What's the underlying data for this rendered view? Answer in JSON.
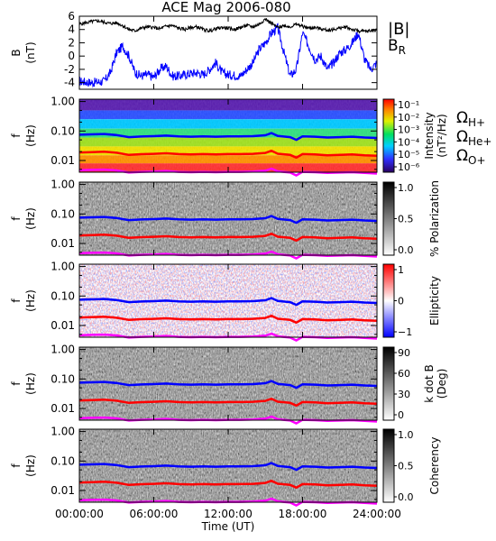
{
  "chart_data": {
    "title": "ACE Mag 2006-080",
    "x_axis": {
      "label": "Time (UT)",
      "range_hours": [
        0,
        24
      ],
      "tick_hours": [
        0,
        6,
        12,
        18,
        24
      ],
      "tick_labels": [
        "00:00:00",
        "06:00:00",
        "12:00:00",
        "18:00:00",
        "24:00:00"
      ]
    },
    "colors": {
      "B": "#000000",
      "BR": "#0000ff",
      "OmegaH": "#0000ff",
      "OmegaHe": "#ff0000",
      "OmegaO": "#ff00ff"
    },
    "line_panel": {
      "type": "line",
      "ylabel_top": "B",
      "ylabel_bottom": "(nT)",
      "ylim": [
        -5,
        6
      ],
      "y_ticks": [
        -4,
        -2,
        0,
        2,
        4,
        6
      ],
      "y_tick_labels": [
        "-4",
        "-2",
        "0",
        "2",
        "4",
        "6"
      ],
      "legend": {
        "B_main": "|B|",
        "BR_main": "B",
        "BR_sub": "R"
      },
      "series": [
        {
          "key": "B",
          "x": [
            0,
            0.5,
            1,
            1.5,
            2,
            2.5,
            3,
            3.5,
            4,
            4.5,
            5,
            5.5,
            6,
            6.5,
            7,
            7.5,
            8,
            8.5,
            9,
            9.5,
            10,
            10.5,
            11,
            11.5,
            12,
            12.5,
            13,
            13.5,
            14,
            14.5,
            15,
            15.5,
            16,
            16.5,
            17,
            17.5,
            18,
            18.5,
            19,
            19.5,
            20,
            20.5,
            21,
            21.5,
            22,
            22.5,
            23,
            23.5,
            24
          ],
          "y": [
            4.8,
            5.0,
            5.2,
            5.3,
            5.1,
            4.9,
            5.0,
            4.6,
            4.0,
            3.8,
            4.2,
            4.4,
            4.3,
            4.1,
            4.5,
            4.6,
            4.2,
            4.0,
            4.3,
            4.4,
            4.0,
            3.8,
            4.1,
            4.3,
            4.2,
            4.0,
            4.3,
            4.6,
            4.4,
            4.8,
            5.6,
            4.9,
            4.3,
            4.6,
            4.4,
            4.8,
            4.5,
            4.2,
            4.3,
            4.1,
            3.9,
            4.0,
            4.2,
            4.4,
            4.0,
            3.8,
            3.7,
            3.8,
            4.0
          ]
        },
        {
          "key": "BR",
          "x": [
            0,
            0.5,
            1,
            1.5,
            2,
            2.5,
            3,
            3.5,
            4,
            4.5,
            5,
            5.5,
            6,
            6.5,
            7,
            7.5,
            8,
            8.5,
            9,
            9.5,
            10,
            10.5,
            11,
            11.5,
            12,
            12.5,
            13,
            13.5,
            14,
            14.5,
            15,
            15.5,
            16,
            16.5,
            17,
            17.5,
            18,
            18.5,
            19,
            19.5,
            20,
            20.5,
            21,
            21.5,
            22,
            22.5,
            23,
            23.5,
            24
          ],
          "y": [
            -3.8,
            -3.9,
            -4.0,
            -3.9,
            -3.8,
            -2.5,
            0.5,
            1.5,
            0.0,
            -2.5,
            -3.0,
            -2.8,
            -3.2,
            -2.0,
            -1.5,
            -3.0,
            -3.0,
            -2.8,
            -2.6,
            -2.5,
            -2.8,
            -2.0,
            -1.0,
            -2.5,
            -2.8,
            -2.9,
            -3.0,
            -2.0,
            -1.0,
            1.0,
            2.0,
            3.5,
            4.2,
            0.5,
            -3.0,
            -2.0,
            3.5,
            1.5,
            -0.5,
            0.0,
            -2.0,
            -1.0,
            0.5,
            1.0,
            2.0,
            3.5,
            -0.5,
            -2.0,
            -1.0
          ]
        }
      ]
    },
    "spectrogram_panels": [
      {
        "key": "intensity",
        "type": "heatmap",
        "ylabel_top": "f",
        "ylabel_bottom": "(Hz)",
        "y_scale": "log",
        "ylim_hz": [
          0.004,
          1.2
        ],
        "y_tick_labels": [
          "1.00",
          "0.10",
          "0.01"
        ],
        "colorbar": {
          "scale": "rainbow",
          "label_top": "Intensity",
          "label_bottom": "(nT²/Hz)",
          "tick_labels": [
            "10⁻¹",
            "10⁻²",
            "10⁻³",
            "10⁻⁴",
            "10⁻⁵",
            "10⁻⁶"
          ]
        },
        "ion_legend": [
          {
            "main": "Ω",
            "sub": "H+",
            "color": "#0000ff"
          },
          {
            "main": "Ω",
            "sub": "He+",
            "color": "#ff0000"
          },
          {
            "main": "Ω",
            "sub": "O+",
            "color": "#ff00ff"
          }
        ]
      },
      {
        "key": "polarization",
        "type": "heatmap",
        "ylabel_top": "f",
        "ylabel_bottom": "(Hz)",
        "y_scale": "log",
        "ylim_hz": [
          0.004,
          1.2
        ],
        "y_tick_labels": [
          "1.00",
          "0.10",
          "0.01"
        ],
        "colorbar": {
          "scale": "gray",
          "label_top": "% Polarization",
          "label_bottom": "",
          "tick_labels": [
            "1.0",
            "0.5",
            "0.0"
          ]
        }
      },
      {
        "key": "ellipticity",
        "type": "heatmap",
        "ylabel_top": "f",
        "ylabel_bottom": "(Hz)",
        "y_scale": "log",
        "ylim_hz": [
          0.004,
          1.2
        ],
        "y_tick_labels": [
          "1.00",
          "0.10",
          "0.01"
        ],
        "colorbar": {
          "scale": "bluered",
          "label_top": "Ellipticity",
          "label_bottom": "",
          "tick_labels": [
            "1",
            "0",
            "−1"
          ]
        }
      },
      {
        "key": "kdotb",
        "type": "heatmap",
        "ylabel_top": "f",
        "ylabel_bottom": "(Hz)",
        "y_scale": "log",
        "ylim_hz": [
          0.004,
          1.2
        ],
        "y_tick_labels": [
          "1.00",
          "0.10",
          "0.01"
        ],
        "colorbar": {
          "scale": "gray",
          "label_top": "k dot B",
          "label_bottom": "(Deg)",
          "tick_labels": [
            "90",
            "60",
            "30",
            "0"
          ]
        }
      },
      {
        "key": "coherency",
        "type": "heatmap",
        "ylabel_top": "f",
        "ylabel_bottom": "(Hz)",
        "y_scale": "log",
        "ylim_hz": [
          0.004,
          1.2
        ],
        "y_tick_labels": [
          "1.00",
          "0.10",
          "0.01"
        ],
        "colorbar": {
          "scale": "gray",
          "label_top": "Coherency",
          "label_bottom": "",
          "tick_labels": [
            "1.0",
            "0.5",
            "0.0"
          ]
        }
      }
    ],
    "gyrofrequency_lines_hz": {
      "x": [
        0,
        1,
        2,
        3,
        4,
        5,
        6,
        7,
        8,
        9,
        10,
        11,
        12,
        13,
        14,
        15,
        15.5,
        16,
        17,
        17.5,
        18,
        19,
        20,
        21,
        22,
        23,
        24
      ],
      "H": [
        0.075,
        0.077,
        0.079,
        0.073,
        0.062,
        0.065,
        0.067,
        0.07,
        0.066,
        0.064,
        0.066,
        0.064,
        0.066,
        0.066,
        0.067,
        0.072,
        0.085,
        0.068,
        0.062,
        0.05,
        0.066,
        0.064,
        0.06,
        0.062,
        0.064,
        0.06,
        0.058
      ],
      "He": [
        0.0187,
        0.0193,
        0.0198,
        0.0183,
        0.0155,
        0.0163,
        0.0168,
        0.0175,
        0.0165,
        0.016,
        0.0165,
        0.016,
        0.0165,
        0.0165,
        0.0168,
        0.018,
        0.0213,
        0.017,
        0.0155,
        0.0125,
        0.0165,
        0.016,
        0.015,
        0.0155,
        0.016,
        0.015,
        0.0145
      ],
      "O": [
        0.0047,
        0.0048,
        0.0049,
        0.0046,
        0.0039,
        0.0041,
        0.0042,
        0.0044,
        0.0041,
        0.004,
        0.0041,
        0.004,
        0.0041,
        0.0041,
        0.0042,
        0.0045,
        0.0053,
        0.0043,
        0.0039,
        0.0031,
        0.0041,
        0.004,
        0.0038,
        0.0039,
        0.004,
        0.0038,
        0.0036
      ]
    }
  }
}
